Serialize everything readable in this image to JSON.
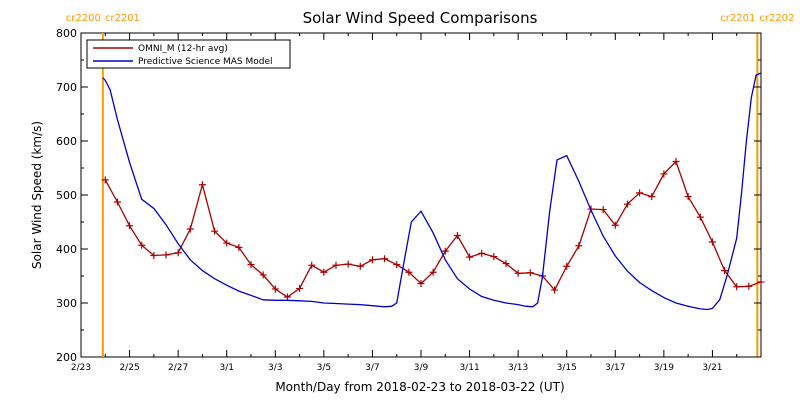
{
  "chart_data": {
    "type": "line",
    "title": "Solar Wind Speed Comparisons",
    "xlabel": "Month/Day from 2018-02-23 to 2018-03-22 (UT)",
    "ylabel": "Solar Wind Speed (km/s)",
    "xlim": [
      0,
      28
    ],
    "ylim": [
      200,
      800
    ],
    "x_ticks": [
      {
        "day": 0,
        "label": "2/23"
      },
      {
        "day": 2,
        "label": "2/25"
      },
      {
        "day": 4,
        "label": "2/27"
      },
      {
        "day": 6,
        "label": "3/1"
      },
      {
        "day": 8,
        "label": "3/3"
      },
      {
        "day": 10,
        "label": "3/5"
      },
      {
        "day": 12,
        "label": "3/7"
      },
      {
        "day": 14,
        "label": "3/9"
      },
      {
        "day": 16,
        "label": "3/11"
      },
      {
        "day": 18,
        "label": "3/13"
      },
      {
        "day": 20,
        "label": "3/15"
      },
      {
        "day": 22,
        "label": "3/17"
      },
      {
        "day": 24,
        "label": "3/19"
      },
      {
        "day": 26,
        "label": "3/21"
      }
    ],
    "y_ticks": [
      200,
      300,
      400,
      500,
      600,
      700,
      800
    ],
    "legend_position": "top-left",
    "carrington_markers": [
      {
        "day": 0.9,
        "color": "#FF9900",
        "label_left": "cr2200",
        "label_right": "cr2201"
      },
      {
        "day": 27.85,
        "color": "#FF9900",
        "label_left": "cr2201",
        "label_right": "cr2202"
      }
    ],
    "series": [
      {
        "name": "OMNI_M (12-hr avg)",
        "color": "#AA0000",
        "marker": "plus",
        "x": [
          1.0,
          1.5,
          2.0,
          2.5,
          3.0,
          3.5,
          4.0,
          4.5,
          5.0,
          5.5,
          6.0,
          6.5,
          7.0,
          7.5,
          8.0,
          8.5,
          9.0,
          9.5,
          10.0,
          10.5,
          11.0,
          11.5,
          12.0,
          12.5,
          13.0,
          13.5,
          14.0,
          14.5,
          15.0,
          15.5,
          16.0,
          16.5,
          17.0,
          17.5,
          18.0,
          18.5,
          19.0,
          19.5,
          20.0,
          20.5,
          21.0,
          21.5,
          22.0,
          22.5,
          23.0,
          23.5,
          24.0,
          24.5,
          25.0,
          25.5,
          26.0,
          26.5,
          27.0,
          27.5,
          28.0
        ],
        "y": [
          528,
          487,
          443,
          407,
          388,
          389,
          393,
          437,
          519,
          433,
          411,
          403,
          371,
          352,
          326,
          311,
          327,
          370,
          357,
          370,
          372,
          368,
          380,
          382,
          371,
          357,
          336,
          357,
          396,
          425,
          385,
          392,
          386,
          373,
          355,
          356,
          350,
          324,
          368,
          406,
          474,
          473,
          444,
          483,
          504,
          497,
          539,
          562,
          497,
          459,
          413,
          360,
          330,
          331,
          339
        ]
      },
      {
        "name": "Predictive Science MAS Model",
        "color": "#0000CC",
        "marker": "none",
        "x": [
          0.9,
          1.0,
          1.2,
          1.5,
          2.0,
          2.5,
          3.0,
          3.5,
          4.0,
          4.5,
          5.0,
          5.5,
          6.0,
          6.5,
          7.0,
          7.5,
          8.0,
          8.5,
          9.0,
          9.5,
          10.0,
          10.5,
          11.0,
          11.5,
          12.0,
          12.5,
          12.8,
          13.0,
          13.3,
          13.6,
          14.0,
          14.5,
          15.0,
          15.5,
          16.0,
          16.5,
          17.0,
          17.5,
          18.0,
          18.3,
          18.6,
          18.8,
          19.0,
          19.3,
          19.6,
          20.0,
          20.5,
          21.0,
          21.5,
          22.0,
          22.5,
          23.0,
          23.5,
          24.0,
          24.5,
          25.0,
          25.5,
          25.8,
          26.0,
          26.3,
          26.6,
          27.0,
          27.2,
          27.4,
          27.6,
          27.8,
          28.0
        ],
        "y": [
          717,
          712,
          695,
          640,
          560,
          492,
          475,
          445,
          410,
          380,
          360,
          345,
          333,
          322,
          314,
          306,
          305,
          305,
          304,
          303,
          300,
          299,
          298,
          297,
          295,
          293,
          294,
          300,
          376,
          450,
          470,
          430,
          380,
          345,
          326,
          312,
          305,
          300,
          297,
          294,
          293,
          300,
          348,
          470,
          565,
          573,
          525,
          472,
          424,
          387,
          359,
          338,
          323,
          310,
          300,
          294,
          289,
          288,
          290,
          306,
          350,
          420,
          505,
          600,
          680,
          722,
          726
        ]
      }
    ]
  }
}
